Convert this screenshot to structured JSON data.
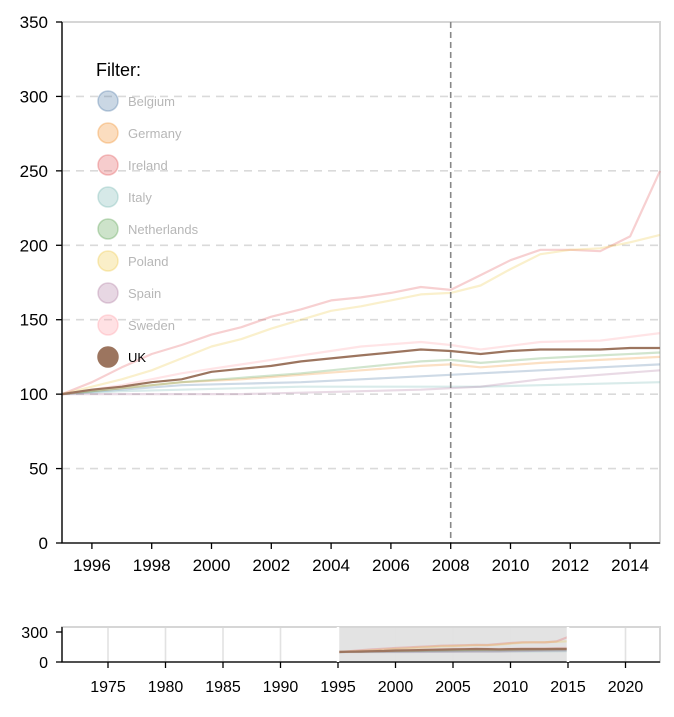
{
  "chart_data": {
    "type": "line",
    "title": "",
    "xlabel": "",
    "ylabel": "",
    "legend_title": "Filter:",
    "legend_position": "top-left",
    "active_series": "UK",
    "marker_year": 2008,
    "main": {
      "xlim": [
        1995,
        2015
      ],
      "ylim": [
        0,
        350
      ],
      "x_ticks": [
        1996,
        1998,
        2000,
        2002,
        2004,
        2006,
        2008,
        2010,
        2012,
        2014
      ],
      "y_ticks": [
        0,
        50,
        100,
        150,
        200,
        250,
        300,
        350
      ],
      "grid": "horizontal dashed"
    },
    "context": {
      "xlim": [
        1971,
        2023
      ],
      "ylim": [
        0,
        350
      ],
      "x_ticks": [
        1975,
        1980,
        1985,
        1990,
        1995,
        2000,
        2005,
        2010,
        2015,
        2020
      ],
      "y_ticks": [
        0,
        300
      ],
      "brush": [
        1995,
        2015
      ]
    },
    "series": [
      {
        "name": "Belgium",
        "color": "#4e79a7",
        "x": [
          1995,
          1997,
          1999,
          2001,
          2003,
          2005,
          2007,
          2008,
          2009,
          2011,
          2013,
          2015
        ],
        "y": [
          100,
          103,
          106,
          107,
          108,
          110,
          112,
          113,
          114,
          116,
          118,
          120
        ]
      },
      {
        "name": "Germany",
        "color": "#f28e2b",
        "x": [
          1995,
          1997,
          1999,
          2001,
          2003,
          2005,
          2007,
          2008,
          2009,
          2011,
          2013,
          2015
        ],
        "y": [
          100,
          104,
          108,
          110,
          113,
          116,
          119,
          120,
          118,
          121,
          123,
          125
        ]
      },
      {
        "name": "Ireland",
        "color": "#e15759",
        "x": [
          1995,
          1996,
          1997,
          1998,
          1999,
          2000,
          2001,
          2002,
          2003,
          2004,
          2005,
          2006,
          2007,
          2008,
          2009,
          2010,
          2011,
          2012,
          2013,
          2014,
          2015
        ],
        "y": [
          100,
          108,
          118,
          127,
          133,
          140,
          145,
          152,
          157,
          163,
          165,
          168,
          172,
          170,
          180,
          190,
          197,
          197,
          196,
          206,
          250
        ]
      },
      {
        "name": "Italy",
        "color": "#76b7b2",
        "x": [
          1995,
          1997,
          1999,
          2001,
          2003,
          2005,
          2007,
          2008,
          2009,
          2011,
          2013,
          2015
        ],
        "y": [
          100,
          102,
          103,
          104,
          105,
          105,
          105,
          105,
          105,
          106,
          107,
          108
        ]
      },
      {
        "name": "Netherlands",
        "color": "#59a14f",
        "x": [
          1995,
          1997,
          1999,
          2001,
          2003,
          2005,
          2007,
          2008,
          2009,
          2011,
          2013,
          2015
        ],
        "y": [
          100,
          104,
          108,
          111,
          114,
          118,
          122,
          123,
          121,
          124,
          126,
          128
        ]
      },
      {
        "name": "Poland",
        "color": "#edc948",
        "x": [
          1995,
          1996,
          1997,
          1998,
          1999,
          2000,
          2001,
          2002,
          2003,
          2004,
          2005,
          2006,
          2007,
          2008,
          2009,
          2010,
          2011,
          2012,
          2013,
          2014,
          2015
        ],
        "y": [
          100,
          105,
          110,
          116,
          124,
          132,
          137,
          144,
          150,
          156,
          159,
          163,
          167,
          168,
          173,
          184,
          194,
          197,
          198,
          202,
          207
        ]
      },
      {
        "name": "Spain",
        "color": "#b07aa1",
        "x": [
          1995,
          1997,
          1999,
          2001,
          2003,
          2005,
          2007,
          2008,
          2009,
          2011,
          2013,
          2015
        ],
        "y": [
          100,
          100,
          100,
          100,
          101,
          102,
          103,
          104,
          105,
          110,
          113,
          116
        ]
      },
      {
        "name": "Sweden",
        "color": "#ff9da7",
        "x": [
          1995,
          1997,
          1999,
          2001,
          2003,
          2005,
          2007,
          2008,
          2009,
          2011,
          2013,
          2015
        ],
        "y": [
          100,
          106,
          114,
          120,
          126,
          132,
          135,
          133,
          130,
          135,
          136,
          141
        ]
      },
      {
        "name": "UK",
        "color": "#9c755f",
        "x": [
          1995,
          1996,
          1997,
          1998,
          1999,
          2000,
          2001,
          2002,
          2003,
          2004,
          2005,
          2006,
          2007,
          2008,
          2009,
          2010,
          2011,
          2012,
          2013,
          2014,
          2015
        ],
        "y": [
          100,
          103,
          105,
          108,
          110,
          115,
          117,
          119,
          122,
          124,
          126,
          128,
          130,
          129,
          127,
          129,
          130,
          130,
          130,
          131,
          131
        ]
      }
    ]
  }
}
